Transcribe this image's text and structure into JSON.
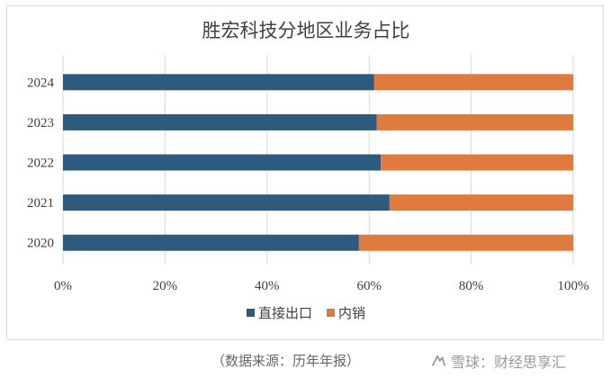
{
  "chart_data": {
    "type": "bar",
    "orientation": "horizontal",
    "stacked": "percent",
    "title": "胜宏科技分地区业务占比",
    "categories": [
      "2024",
      "2023",
      "2022",
      "2021",
      "2020"
    ],
    "series": [
      {
        "name": "直接出口",
        "color": "#2e5a7e",
        "values": [
          61,
          61.5,
          62.3,
          64,
          58
        ]
      },
      {
        "name": "内销",
        "color": "#e07b3f",
        "values": [
          39,
          38.5,
          37.7,
          36,
          42
        ]
      }
    ],
    "xlim": [
      0,
      100
    ],
    "xticks": [
      "0%",
      "20%",
      "40%",
      "60%",
      "80%",
      "100%"
    ],
    "xlabel": "",
    "ylabel": "",
    "grid": "vertical",
    "legend": "bottom-center"
  },
  "footer": {
    "source": "（数据来源：历年年报）",
    "watermark": "雪球：财经思享汇"
  }
}
